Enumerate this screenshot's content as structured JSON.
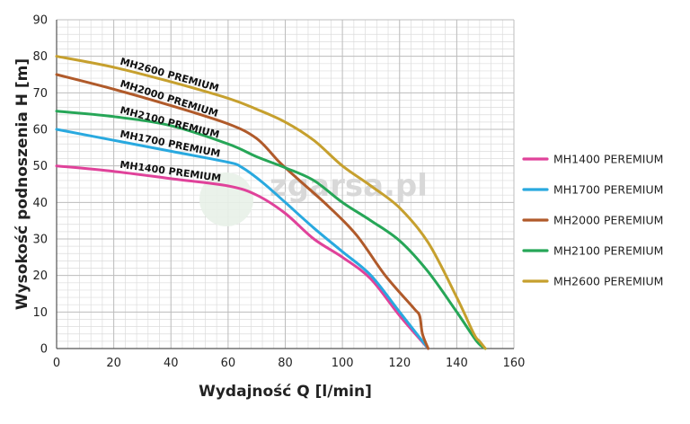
{
  "chart_data": {
    "type": "line",
    "title": "",
    "xlabel": "Wydajność Q [l/min]",
    "ylabel": "Wysokość podnoszenia H [m]",
    "xlim": [
      0,
      160
    ],
    "ylim": [
      0,
      90
    ],
    "x_ticks": [
      0,
      20,
      40,
      60,
      80,
      100,
      120,
      140,
      160
    ],
    "y_ticks": [
      0,
      10,
      20,
      30,
      40,
      50,
      60,
      70,
      80,
      90
    ],
    "grid": true,
    "legend_position": "right",
    "watermark": "zgarsa.pl",
    "series": [
      {
        "name": "MH1400 PEREMIUM",
        "curve_label": "MH1400 PREMIUM",
        "color": "#e0429a",
        "points": [
          [
            0,
            50
          ],
          [
            20,
            48.5
          ],
          [
            40,
            46.5
          ],
          [
            60,
            44.5
          ],
          [
            70,
            42
          ],
          [
            80,
            37
          ],
          [
            90,
            30
          ],
          [
            100,
            25
          ],
          [
            110,
            19
          ],
          [
            120,
            9
          ],
          [
            130,
            0
          ]
        ]
      },
      {
        "name": "MH1700 PEREMIUM",
        "curve_label": "MH1700 PREMIUM",
        "color": "#29a9df",
        "points": [
          [
            0,
            60
          ],
          [
            20,
            57
          ],
          [
            40,
            54
          ],
          [
            60,
            51
          ],
          [
            65,
            49.5
          ],
          [
            72,
            45.5
          ],
          [
            80,
            40
          ],
          [
            90,
            33
          ],
          [
            100,
            26.5
          ],
          [
            110,
            20
          ],
          [
            120,
            10
          ],
          [
            130,
            0
          ]
        ]
      },
      {
        "name": "MH2000 PEREMIUM",
        "curve_label": "MH2000 PREMIUM",
        "color": "#b05a2a",
        "points": [
          [
            0,
            75
          ],
          [
            20,
            71
          ],
          [
            40,
            66.5
          ],
          [
            60,
            61.5
          ],
          [
            70,
            57.5
          ],
          [
            78,
            51
          ],
          [
            85,
            46
          ],
          [
            95,
            39
          ],
          [
            105,
            31
          ],
          [
            115,
            20
          ],
          [
            125,
            11
          ],
          [
            127,
            9
          ],
          [
            128,
            4
          ],
          [
            130,
            0
          ]
        ]
      },
      {
        "name": "MH2100 PEREMIUM",
        "curve_label": "MH2100 PREMIUM",
        "color": "#26a657",
        "points": [
          [
            0,
            65
          ],
          [
            20,
            63.5
          ],
          [
            40,
            61
          ],
          [
            60,
            56
          ],
          [
            70,
            52.5
          ],
          [
            80,
            49.5
          ],
          [
            90,
            46
          ],
          [
            100,
            40
          ],
          [
            110,
            35
          ],
          [
            120,
            29.5
          ],
          [
            130,
            21
          ],
          [
            140,
            10
          ],
          [
            147,
            2
          ],
          [
            150,
            0
          ]
        ]
      },
      {
        "name": "MH2600 PEREMIUM",
        "curve_label": "MH2600 PREMIUM",
        "color": "#c6a02e",
        "points": [
          [
            0,
            80
          ],
          [
            20,
            77
          ],
          [
            40,
            73
          ],
          [
            60,
            68.5
          ],
          [
            70,
            65.5
          ],
          [
            80,
            62
          ],
          [
            90,
            57
          ],
          [
            100,
            50
          ],
          [
            110,
            44.5
          ],
          [
            120,
            38.5
          ],
          [
            130,
            29
          ],
          [
            140,
            14
          ],
          [
            146,
            4
          ],
          [
            148,
            2
          ],
          [
            150,
            0
          ]
        ]
      }
    ]
  }
}
